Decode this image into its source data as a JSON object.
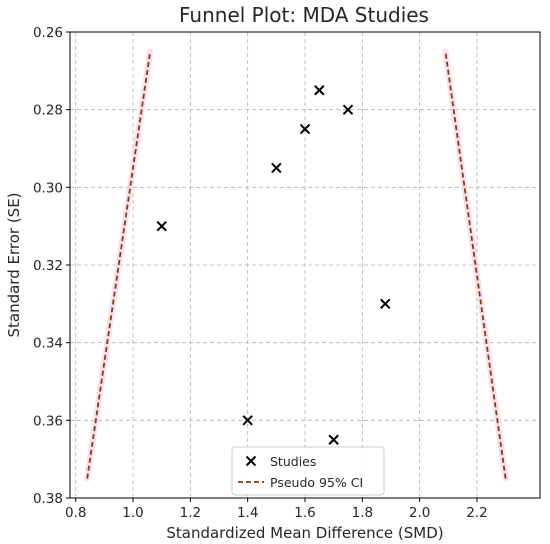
{
  "chart_data": {
    "type": "scatter",
    "title": "Funnel Plot: MDA Studies",
    "xlabel": "Standardized Mean Difference (SMD)",
    "ylabel": "Standard Error (SE)",
    "xlim": [
      0.78,
      2.42
    ],
    "ylim": [
      0.38,
      0.26
    ],
    "y_inverted": true,
    "grid": true,
    "legend_position": "bottom-center",
    "x_ticks": [
      "0.8",
      "1.0",
      "1.2",
      "1.4",
      "1.6",
      "1.8",
      "2.0",
      "2.2"
    ],
    "y_ticks": [
      "0.26",
      "0.28",
      "0.30",
      "0.32",
      "0.34",
      "0.36",
      "0.38"
    ],
    "series": [
      {
        "name": "Studies",
        "marker": "x",
        "color": "#000000",
        "points": [
          {
            "x": 1.65,
            "y": 0.275
          },
          {
            "x": 1.75,
            "y": 0.28
          },
          {
            "x": 1.6,
            "y": 0.285
          },
          {
            "x": 1.5,
            "y": 0.295
          },
          {
            "x": 1.1,
            "y": 0.31
          },
          {
            "x": 1.88,
            "y": 0.33
          },
          {
            "x": 1.4,
            "y": 0.36
          },
          {
            "x": 1.7,
            "y": 0.365
          }
        ]
      },
      {
        "name": "Pseudo 95% CI",
        "style": "dashed",
        "color": "#8b3a0f",
        "lines": [
          [
            {
              "x": 0.84,
              "y": 0.375
            },
            {
              "x": 1.06,
              "y": 0.265
            }
          ],
          [
            {
              "x": 2.3,
              "y": 0.375
            },
            {
              "x": 2.09,
              "y": 0.265
            }
          ]
        ]
      }
    ]
  }
}
